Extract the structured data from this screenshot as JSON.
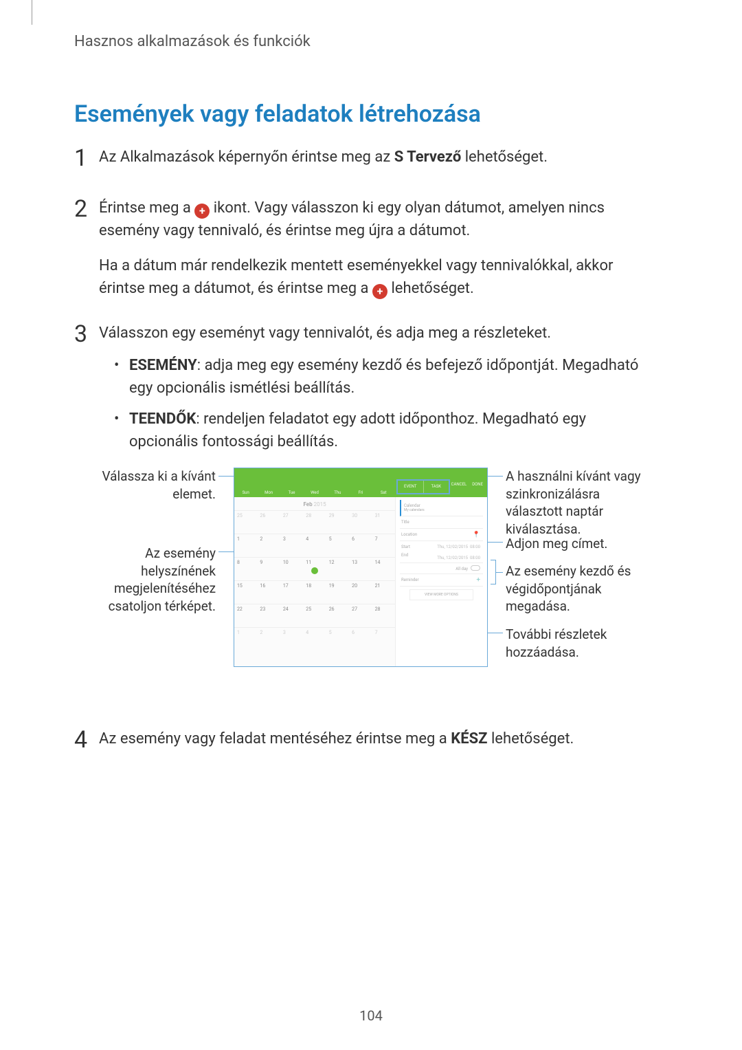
{
  "header": {
    "label": "Hasznos alkalmazások és funkciók"
  },
  "title": "Események vagy feladatok létrehozása",
  "steps": {
    "s1": {
      "num": "1",
      "pre": "Az Alkalmazások képernyőn érintse meg az ",
      "bold": "S Tervező",
      "post": " lehetőséget."
    },
    "s2": {
      "num": "2",
      "p1a": "Érintse meg a ",
      "p1b": " ikont. Vagy válasszon ki egy olyan dátumot, amelyen nincs esemény vagy tennivaló, és érintse meg újra a dátumot.",
      "p2a": "Ha a dátum már rendelkezik mentett eseményekkel vagy tennivalókkal, akkor érintse meg a dátumot, és érintse meg a ",
      "p2b": " lehetőséget."
    },
    "s3": {
      "num": "3",
      "intro": "Válasszon egy eseményt vagy tennivalót, és adja meg a részleteket.",
      "b1_bold": "ESEMÉNY",
      "b1_rest": ": adja meg egy esemény kezdő és befejező időpontját. Megadható egy opcionális ismétlési beállítás.",
      "b2_bold": "TEENDŐK",
      "b2_rest": ": rendeljen feladatot egy adott időponthoz. Megadható egy opcionális fontossági beállítás."
    },
    "s4": {
      "num": "4",
      "pre": "Az esemény vagy feladat mentéséhez érintse meg a ",
      "bold": "KÉSZ",
      "post": " lehetőséget."
    }
  },
  "plusGlyph": "+",
  "diagram": {
    "callouts": {
      "left1": "Válassza ki a kívánt elemet.",
      "left2": "Az esemény helyszínének megjelenítéséhez csatoljon térképet.",
      "right1": "A használni kívánt vagy szinkronizálásra választott naptár kiválasztása.",
      "right2": "Adjon meg címet.",
      "right3": "Az esemény kezdő és végidőpontjának megadása.",
      "right4": "További részletek hozzáadása."
    },
    "calendar": {
      "monthLabel": "Feb",
      "yearLabel": "2015",
      "dayHeaders": [
        "Sun",
        "Mon",
        "Tue",
        "Wed",
        "Thu",
        "Fri",
        "Sat"
      ],
      "tabs": {
        "event": "EVENT",
        "task": "TASK"
      },
      "actions": {
        "cancel": "CANCEL",
        "done": "DONE"
      },
      "todayDay": 11,
      "cells": [
        {
          "n": "25",
          "m": true
        },
        {
          "n": "26",
          "m": true
        },
        {
          "n": "27",
          "m": true
        },
        {
          "n": "28",
          "m": true
        },
        {
          "n": "29",
          "m": true
        },
        {
          "n": "30",
          "m": true
        },
        {
          "n": "31",
          "m": true
        },
        {
          "n": "1"
        },
        {
          "n": "2"
        },
        {
          "n": "3"
        },
        {
          "n": "4"
        },
        {
          "n": "5"
        },
        {
          "n": "6"
        },
        {
          "n": "7"
        },
        {
          "n": "8"
        },
        {
          "n": "9"
        },
        {
          "n": "10"
        },
        {
          "n": "11"
        },
        {
          "n": "12"
        },
        {
          "n": "13"
        },
        {
          "n": "14"
        },
        {
          "n": "15"
        },
        {
          "n": "16"
        },
        {
          "n": "17"
        },
        {
          "n": "18"
        },
        {
          "n": "19"
        },
        {
          "n": "20"
        },
        {
          "n": "21"
        },
        {
          "n": "22"
        },
        {
          "n": "23"
        },
        {
          "n": "24"
        },
        {
          "n": "25"
        },
        {
          "n": "26"
        },
        {
          "n": "27"
        },
        {
          "n": "28"
        },
        {
          "n": "1",
          "m": true
        },
        {
          "n": "2",
          "m": true
        },
        {
          "n": "3",
          "m": true
        },
        {
          "n": "4",
          "m": true
        },
        {
          "n": "5",
          "m": true
        },
        {
          "n": "6",
          "m": true
        },
        {
          "n": "7",
          "m": true
        }
      ]
    },
    "form": {
      "calendar_sel": "Calendar",
      "calendar_sub": "My calendars",
      "title": "Title",
      "location": "Location",
      "start": "Start",
      "end": "End",
      "start_date": "Thu, 12/02/2015",
      "end_date": "Thu, 12/02/2015",
      "time": "08:00",
      "allday": "All day",
      "reminder": "Reminder",
      "viewmore": "VIEW MORE OPTIONS"
    },
    "colors": {
      "green": "#6abf3a",
      "blue": "#6aa9d8",
      "border": "#eeeeee"
    }
  },
  "pageNumber": "104"
}
